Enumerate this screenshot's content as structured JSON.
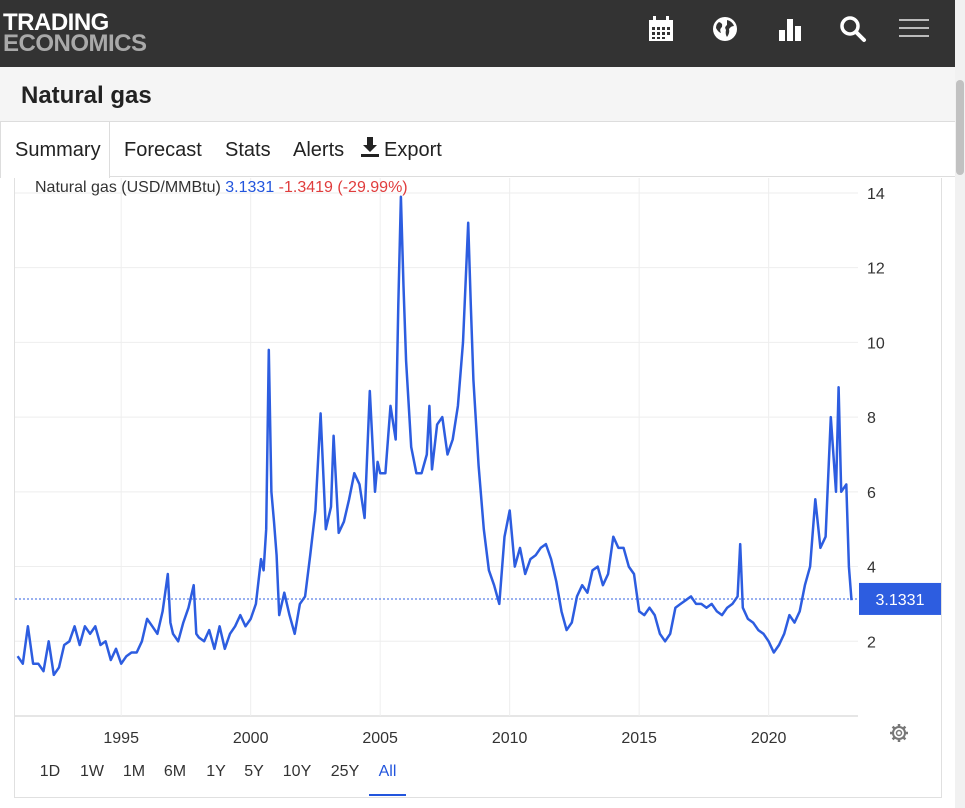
{
  "header": {
    "logo_line1": "TRADING",
    "logo_line2": "ECONOMICS",
    "icons": [
      "calendar-icon",
      "globe-icon",
      "bar-chart-icon",
      "search-icon",
      "menu-icon"
    ]
  },
  "page": {
    "title": "Natural gas"
  },
  "tabs": [
    {
      "label": "Summary",
      "active": true
    },
    {
      "label": "Forecast"
    },
    {
      "label": "Stats"
    },
    {
      "label": "Alerts"
    },
    {
      "label": "Export",
      "icon": "download-icon"
    }
  ],
  "legend": {
    "name": "Natural gas (USD/MMBtu)",
    "value": "3.1331",
    "change": "-1.3419 (-29.99%)"
  },
  "last_value_label": "3.1331",
  "ranges": [
    {
      "label": "1D"
    },
    {
      "label": "1W"
    },
    {
      "label": "1M"
    },
    {
      "label": "6M"
    },
    {
      "label": "1Y"
    },
    {
      "label": "5Y"
    },
    {
      "label": "10Y"
    },
    {
      "label": "25Y"
    },
    {
      "label": "All",
      "active": true
    }
  ],
  "colors": {
    "line": "#2d5de0",
    "accent": "#2255dd",
    "negative": "#e03c3c",
    "topbar": "#333333"
  },
  "chart_data": {
    "type": "line",
    "grid": true,
    "y_axis_side": "right",
    "xlim": [
      1990.9,
      2023.45
    ],
    "ylim": [
      0,
      14.4
    ],
    "xticks": [
      1995,
      2000,
      2005,
      2010,
      2015,
      2020
    ],
    "yticks": [
      2,
      4,
      6,
      8,
      10,
      12,
      14
    ],
    "last_value": 3.1331,
    "series": [
      {
        "x": [
          1991.0,
          1991.2,
          1991.4,
          1991.6,
          1991.8,
          1992.0,
          1992.2,
          1992.4,
          1992.6,
          1992.8,
          1993.0,
          1993.2,
          1993.4,
          1993.6,
          1993.8,
          1994.0,
          1994.2,
          1994.4,
          1994.6,
          1994.8,
          1995.0,
          1995.2,
          1995.4,
          1995.6,
          1995.8,
          1996.0,
          1996.2,
          1996.4,
          1996.6,
          1996.8,
          1996.9,
          1997.0,
          1997.2,
          1997.4,
          1997.6,
          1997.8,
          1997.9,
          1998.0,
          1998.2,
          1998.4,
          1998.6,
          1998.8,
          1999.0,
          1999.2,
          1999.4,
          1999.6,
          1999.8,
          2000.0,
          2000.2,
          2000.4,
          2000.5,
          2000.6,
          2000.7,
          2000.8,
          2000.9,
          2001.0,
          2001.1,
          2001.3,
          2001.5,
          2001.7,
          2001.9,
          2002.1,
          2002.3,
          2002.5,
          2002.7,
          2002.9,
          2003.1,
          2003.2,
          2003.4,
          2003.6,
          2003.8,
          2004.0,
          2004.2,
          2004.4,
          2004.6,
          2004.8,
          2004.9,
          2005.0,
          2005.2,
          2005.4,
          2005.6,
          2005.7,
          2005.8,
          2005.9,
          2006.0,
          2006.2,
          2006.4,
          2006.6,
          2006.8,
          2006.9,
          2007.0,
          2007.2,
          2007.4,
          2007.6,
          2007.8,
          2008.0,
          2008.2,
          2008.4,
          2008.5,
          2008.6,
          2008.8,
          2009.0,
          2009.2,
          2009.4,
          2009.6,
          2009.8,
          2010.0,
          2010.2,
          2010.4,
          2010.6,
          2010.8,
          2011.0,
          2011.2,
          2011.4,
          2011.6,
          2011.8,
          2012.0,
          2012.2,
          2012.4,
          2012.6,
          2012.8,
          2013.0,
          2013.2,
          2013.4,
          2013.6,
          2013.8,
          2014.0,
          2014.2,
          2014.4,
          2014.6,
          2014.8,
          2015.0,
          2015.2,
          2015.4,
          2015.6,
          2015.8,
          2016.0,
          2016.2,
          2016.4,
          2016.6,
          2016.8,
          2017.0,
          2017.2,
          2017.4,
          2017.6,
          2017.8,
          2018.0,
          2018.2,
          2018.4,
          2018.6,
          2018.8,
          2018.9,
          2019.0,
          2019.2,
          2019.4,
          2019.6,
          2019.8,
          2020.0,
          2020.2,
          2020.4,
          2020.6,
          2020.8,
          2021.0,
          2021.2,
          2021.4,
          2021.6,
          2021.8,
          2022.0,
          2022.2,
          2022.4,
          2022.6,
          2022.7,
          2022.8,
          2023.0,
          2023.1,
          2023.2
        ],
        "values": [
          1.6,
          1.4,
          2.4,
          1.4,
          1.4,
          1.2,
          2.0,
          1.1,
          1.3,
          1.9,
          2.0,
          2.4,
          1.9,
          2.4,
          2.2,
          2.4,
          1.9,
          2.0,
          1.5,
          1.8,
          1.4,
          1.6,
          1.7,
          1.7,
          2.0,
          2.6,
          2.4,
          2.2,
          2.8,
          3.8,
          2.5,
          2.2,
          2.0,
          2.5,
          2.9,
          3.5,
          2.2,
          2.1,
          2.0,
          2.3,
          1.8,
          2.4,
          1.8,
          2.2,
          2.4,
          2.7,
          2.4,
          2.6,
          3.0,
          4.2,
          3.9,
          5.0,
          9.8,
          6.0,
          5.2,
          4.3,
          2.7,
          3.3,
          2.7,
          2.2,
          3.0,
          3.2,
          4.3,
          5.5,
          8.1,
          5.0,
          5.6,
          7.5,
          4.9,
          5.2,
          5.8,
          6.5,
          6.2,
          5.3,
          8.7,
          6.0,
          6.8,
          6.5,
          6.5,
          8.3,
          7.4,
          11.0,
          13.9,
          11.5,
          9.5,
          7.2,
          6.5,
          6.5,
          7.0,
          8.3,
          6.6,
          7.8,
          8.0,
          7.0,
          7.4,
          8.3,
          10.0,
          13.2,
          11.0,
          9.0,
          6.7,
          5.0,
          3.9,
          3.5,
          3.0,
          4.8,
          5.5,
          4.0,
          4.5,
          3.8,
          4.2,
          4.3,
          4.5,
          4.6,
          4.2,
          3.6,
          2.8,
          2.3,
          2.5,
          3.2,
          3.5,
          3.3,
          3.9,
          4.0,
          3.5,
          3.8,
          4.8,
          4.5,
          4.5,
          4.0,
          3.8,
          2.8,
          2.7,
          2.9,
          2.7,
          2.2,
          2.0,
          2.2,
          2.9,
          3.0,
          3.1,
          3.2,
          3.0,
          3.0,
          2.9,
          3.0,
          2.8,
          2.7,
          2.9,
          3.0,
          3.2,
          4.6,
          2.9,
          2.6,
          2.5,
          2.3,
          2.2,
          2.0,
          1.7,
          1.9,
          2.2,
          2.7,
          2.5,
          2.8,
          3.5,
          4.0,
          5.8,
          4.5,
          4.8,
          8.0,
          6.0,
          8.8,
          6.0,
          6.2,
          4.0,
          3.1
        ]
      }
    ]
  }
}
